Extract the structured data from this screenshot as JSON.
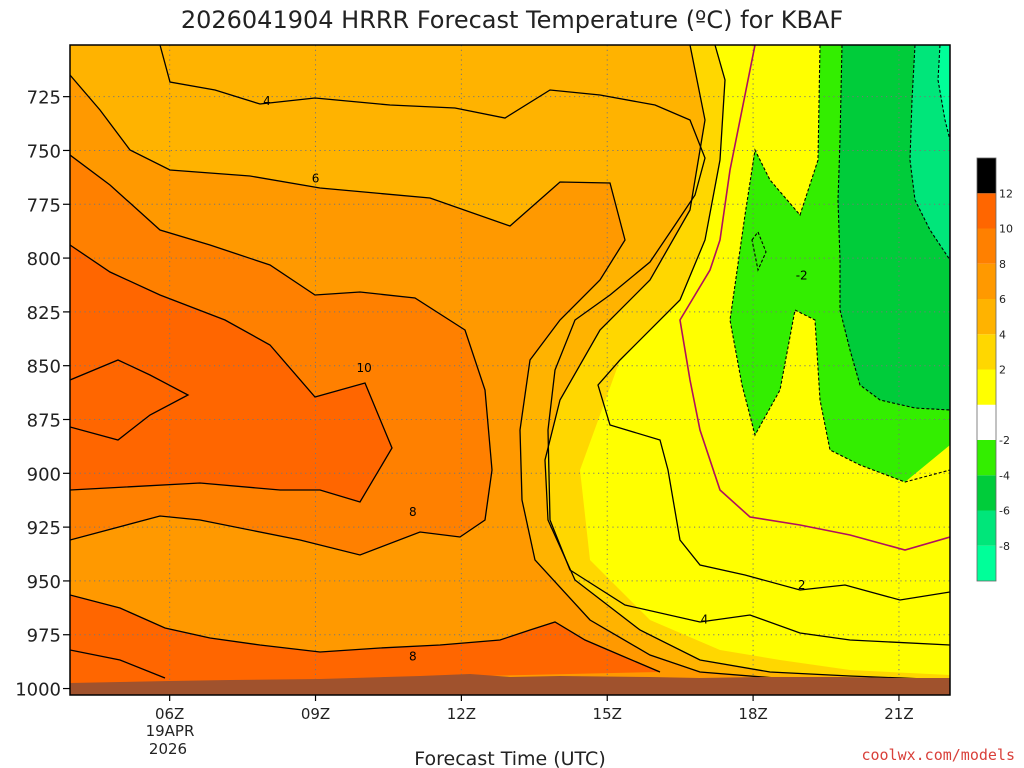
{
  "title": "2026041904 HRRR Forecast Temperature (ºC) for KBAF",
  "credit": "coolwx.com/models",
  "colors": {
    "bands": [
      "#00ff99",
      "#00e67a",
      "#00cc3a",
      "#33ee00",
      "#ffffff",
      "#ffff00",
      "#ffd700",
      "#ffb300",
      "#ff9900",
      "#ff8000",
      "#ff6600"
    ],
    "zero_line": "#b0105e",
    "ground": "#a0522d"
  },
  "chart_data": {
    "type": "contour",
    "title": "2026041904 HRRR Forecast Temperature (ºC) for KBAF",
    "xlabel": "Forecast Time (UTC)",
    "ylabel": "",
    "x_ticks": [
      "06Z",
      "09Z",
      "12Z",
      "15Z",
      "18Z",
      "21Z"
    ],
    "x_tick_hours": [
      6,
      9,
      12,
      15,
      18,
      21
    ],
    "x_date_line1": "19APR",
    "x_date_line2": "2026",
    "xlim_hours": [
      3.95,
      22.05
    ],
    "y_ticks": [
      725,
      750,
      775,
      800,
      825,
      850,
      875,
      900,
      925,
      950,
      975,
      1000
    ],
    "ylim_hpa": [
      1003,
      701
    ],
    "grid": true,
    "colorbar": {
      "levels": [
        -10,
        -8,
        -6,
        -4,
        -2,
        0,
        2,
        4,
        6,
        8,
        10,
        12,
        14
      ],
      "labels": [
        "-8",
        "-6",
        "-4",
        "-2",
        "2",
        "4",
        "6",
        "8",
        "10",
        "12"
      ],
      "label_values": [
        -8,
        -6,
        -4,
        -2,
        2,
        4,
        6,
        8,
        10,
        12
      ],
      "placement": "right"
    },
    "contour_labels": [
      {
        "text": "4",
        "hour": 8.0,
        "hpa": 727
      },
      {
        "text": "6",
        "hour": 9.0,
        "hpa": 763
      },
      {
        "text": "10",
        "hour": 10.0,
        "hpa": 851
      },
      {
        "text": "8",
        "hour": 11.0,
        "hpa": 918
      },
      {
        "text": "8",
        "hour": 11.0,
        "hpa": 985
      },
      {
        "text": "-2",
        "hour": 19.0,
        "hpa": 808
      },
      {
        "text": "2",
        "hour": 19.0,
        "hpa": 952
      },
      {
        "text": "4",
        "hour": 17.0,
        "hpa": 968
      }
    ]
  }
}
